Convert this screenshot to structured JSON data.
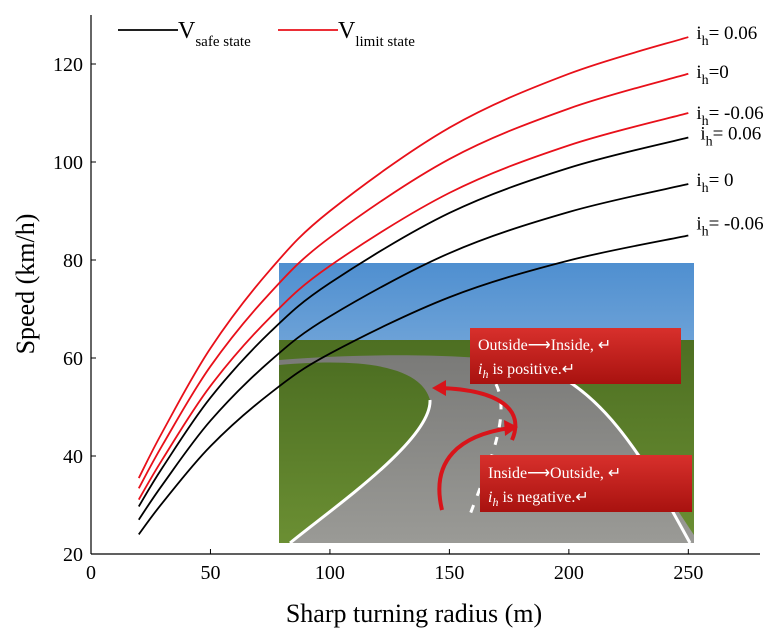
{
  "chart_data": {
    "type": "line",
    "x_label": "Sharp turning radius (m)",
    "y_label": "Speed (km/h)",
    "x": [
      20,
      30,
      50,
      75,
      100,
      150,
      200,
      250
    ],
    "xlim": [
      0,
      280
    ],
    "ylim": [
      20,
      130
    ],
    "xticks": [
      0,
      50,
      100,
      150,
      200,
      250
    ],
    "yticks": [
      20,
      40,
      60,
      80,
      100,
      120
    ],
    "grid": false,
    "legend": [
      {
        "name": "V",
        "sub": "safe state",
        "color": "#000000"
      },
      {
        "name": "V",
        "sub": "limit state",
        "color": "#e8101a"
      }
    ],
    "series": [
      {
        "color": "#e8101a",
        "label": {
          "main": "i",
          "sub": "h",
          "rest": "= 0.06"
        },
        "values": [
          35.5,
          45,
          62,
          78,
          90,
          107,
          118,
          125.5
        ]
      },
      {
        "color": "#e8101a",
        "label": {
          "main": "i",
          "sub": "h",
          "rest": "=0"
        },
        "values": [
          33.4,
          42.3,
          58.3,
          73.3,
          84.6,
          100.6,
          110.9,
          118
        ]
      },
      {
        "color": "#e8101a",
        "label": {
          "main": "i",
          "sub": "h",
          "rest": "= -0.06"
        },
        "values": [
          31.1,
          39.4,
          54.3,
          68.3,
          78.8,
          93.7,
          103.4,
          110
        ]
      },
      {
        "color": "#000000",
        "label": {
          "main": "i",
          "sub": "h",
          "rest": "= 0.06"
        },
        "values": [
          29.7,
          37.7,
          51.9,
          65.3,
          75.3,
          89.6,
          98.8,
          105
        ]
      },
      {
        "color": "#000000",
        "label": {
          "main": "i",
          "sub": "h",
          "rest": "= 0"
        },
        "values": [
          27.0,
          34.2,
          47.2,
          59.4,
          68.5,
          81.4,
          89.8,
          95.5
        ]
      },
      {
        "color": "#000000",
        "label": {
          "main": "i",
          "sub": "h",
          "rest": "= -0.06"
        },
        "values": [
          24.0,
          30.5,
          42.0,
          52.8,
          60.9,
          72.4,
          79.9,
          85
        ]
      }
    ],
    "inset_callouts": [
      {
        "line1": "Outside⟶Inside,  ↵",
        "var": "i",
        "var_sub": "h",
        "line2": " is positive.↵"
      },
      {
        "line1": "Inside⟶Outside,  ↵",
        "var": "i",
        "var_sub": "h",
        "line2": " is negative.↵"
      }
    ]
  }
}
